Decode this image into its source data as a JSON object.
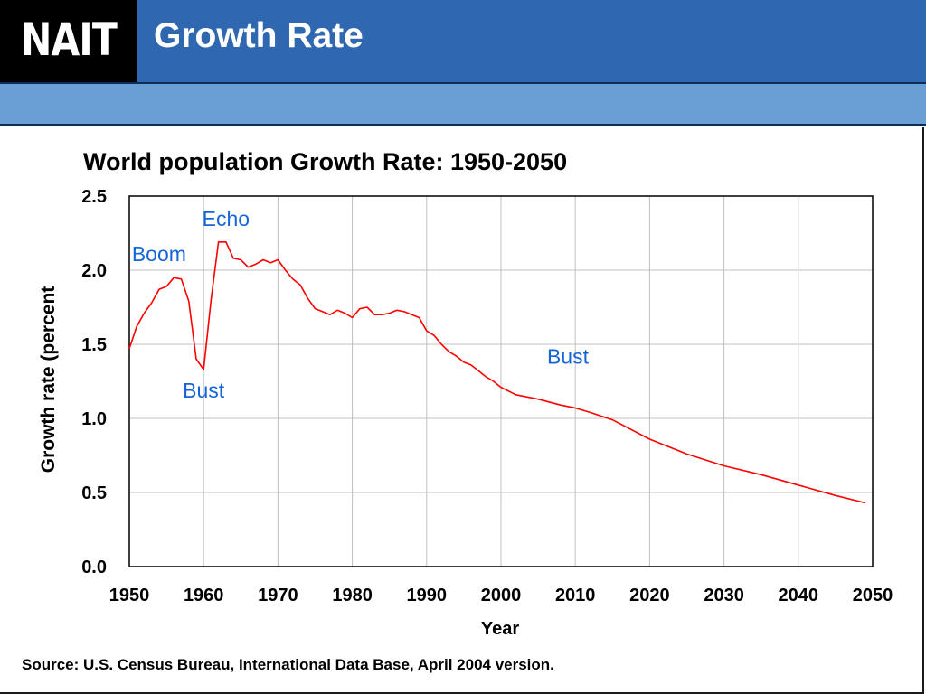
{
  "slide": {
    "logo": "NAIT",
    "title": "Growth Rate"
  },
  "colors": {
    "header": "#2f67b0",
    "subbar": "#6a9fd6",
    "line": "#ff0000",
    "annotation": "#1565d8",
    "grid": "#c0c0c0"
  },
  "chart_data": {
    "type": "line",
    "title": "World population Growth Rate: 1950-2050",
    "xlabel": "Year",
    "ylabel": "Growth rate (percent",
    "xlim": [
      1950,
      2050
    ],
    "ylim": [
      0,
      2.5
    ],
    "x_ticks": [
      "1950",
      "1960",
      "1970",
      "1980",
      "1990",
      "2000",
      "2010",
      "2020",
      "2030",
      "2040",
      "2050"
    ],
    "y_ticks": [
      "0.0",
      "0.5",
      "1.0",
      "1.5",
      "2.0",
      "2.5"
    ],
    "grid": true,
    "series": [
      {
        "x": [
          1950,
          1951,
          1952,
          1953,
          1954,
          1955,
          1956,
          1957,
          1958,
          1959,
          1960,
          1961,
          1962,
          1963,
          1964,
          1965,
          1966,
          1967,
          1968,
          1969,
          1970,
          1971,
          1972,
          1973,
          1974,
          1975,
          1976,
          1977,
          1978,
          1979,
          1980,
          1981,
          1982,
          1983,
          1984,
          1985,
          1986,
          1987,
          1988,
          1989,
          1990,
          1991,
          1992,
          1993,
          1994,
          1995,
          1996,
          1997,
          1998,
          1999,
          2000,
          2002,
          2005,
          2008,
          2010,
          2012,
          2015,
          2020,
          2025,
          2030,
          2035,
          2040,
          2045,
          2049
        ],
        "y": [
          1.47,
          1.62,
          1.71,
          1.78,
          1.87,
          1.89,
          1.95,
          1.94,
          1.79,
          1.4,
          1.33,
          1.8,
          2.19,
          2.19,
          2.08,
          2.07,
          2.02,
          2.04,
          2.07,
          2.05,
          2.07,
          2.0,
          1.94,
          1.9,
          1.81,
          1.74,
          1.72,
          1.7,
          1.73,
          1.71,
          1.68,
          1.74,
          1.75,
          1.7,
          1.7,
          1.71,
          1.73,
          1.72,
          1.7,
          1.68,
          1.59,
          1.56,
          1.5,
          1.45,
          1.42,
          1.38,
          1.36,
          1.32,
          1.28,
          1.25,
          1.21,
          1.16,
          1.13,
          1.09,
          1.07,
          1.04,
          0.99,
          0.86,
          0.76,
          0.68,
          0.62,
          0.55,
          0.48,
          0.43
        ]
      }
    ],
    "annotations": [
      {
        "text": "Echo",
        "x": 1963,
        "y": 2.3
      },
      {
        "text": "Boom",
        "x": 1954,
        "y": 2.06
      },
      {
        "text": "Bust",
        "x": 1960,
        "y": 1.14
      },
      {
        "text": "Bust",
        "x": 2009,
        "y": 1.37
      }
    ],
    "source": "Source: U.S. Census Bureau, International Data Base, April 2004 version."
  }
}
